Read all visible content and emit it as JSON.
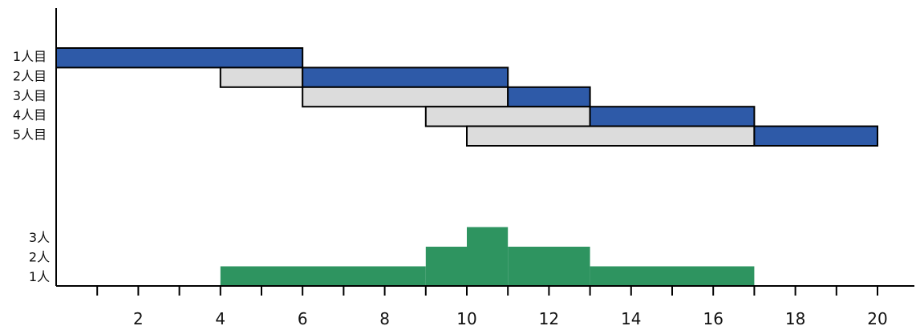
{
  "chart_data": {
    "type": "bar",
    "title": "",
    "xlabel": "",
    "ylabel": "",
    "xlim": [
      0,
      21
    ],
    "x_ticks": [
      2,
      4,
      6,
      8,
      10,
      12,
      14,
      16,
      18,
      20
    ],
    "grid": false,
    "legend": "none",
    "colors": {
      "active": "#2e5aa8",
      "waiting": "#dcdcdc",
      "count": "#2e9460",
      "outline": "#000000"
    },
    "gantt": {
      "rows": [
        {
          "label": "1人目",
          "waiting": null,
          "active": [
            0,
            6
          ]
        },
        {
          "label": "2人目",
          "waiting": [
            4,
            6
          ],
          "active": [
            6,
            11
          ]
        },
        {
          "label": "3人目",
          "waiting": [
            6,
            11
          ],
          "active": [
            11,
            13
          ]
        },
        {
          "label": "4人目",
          "waiting": [
            9,
            13
          ],
          "active": [
            13,
            17
          ]
        },
        {
          "label": "5人目",
          "waiting": [
            10,
            17
          ],
          "active": [
            17,
            20
          ]
        }
      ]
    },
    "occupancy": {
      "levels": [
        "1人",
        "2人",
        "3人"
      ],
      "segments": [
        {
          "start": 4,
          "end": 9,
          "value": 1
        },
        {
          "start": 9,
          "end": 10,
          "value": 2
        },
        {
          "start": 10,
          "end": 11,
          "value": 3
        },
        {
          "start": 11,
          "end": 13,
          "value": 2
        },
        {
          "start": 13,
          "end": 17,
          "value": 1
        }
      ]
    }
  }
}
